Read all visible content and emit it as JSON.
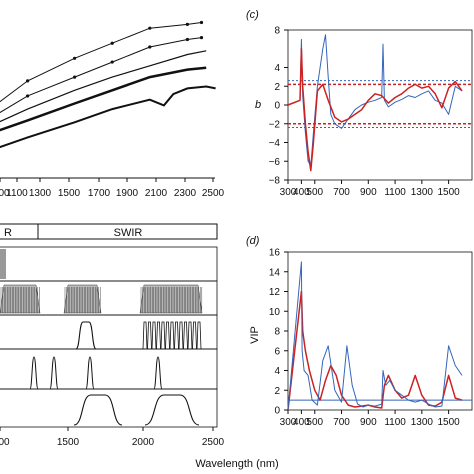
{
  "chart_data": [
    {
      "type": "line",
      "panel": "top-left",
      "series": [
        {
          "x": [
            0,
            400,
            900,
            1300,
            1700,
            2100,
            2250
          ],
          "y": [
            0.55,
            0.7,
            0.82,
            0.9,
            0.98,
            1.0,
            1.01
          ]
        },
        {
          "x": [
            0,
            400,
            900,
            1300,
            1700,
            2100,
            2250
          ],
          "y": [
            0.5,
            0.62,
            0.72,
            0.8,
            0.88,
            0.92,
            0.93
          ]
        },
        {
          "x": [
            0,
            400,
            900,
            1300,
            1700,
            2100,
            2300
          ],
          "y": [
            0.46,
            0.55,
            0.65,
            0.72,
            0.78,
            0.84,
            0.86
          ]
        },
        {
          "x": [
            0,
            400,
            900,
            1300,
            1700,
            2100,
            2300
          ],
          "y": [
            0.42,
            0.49,
            0.58,
            0.65,
            0.72,
            0.76,
            0.77
          ]
        },
        {
          "x": [
            0,
            400,
            900,
            1300,
            1700,
            1850,
            1950,
            2100,
            2300,
            2400
          ],
          "y": [
            0.33,
            0.4,
            0.48,
            0.55,
            0.6,
            0.57,
            0.63,
            0.66,
            0.67,
            0.66
          ]
        }
      ],
      "xticks": [
        "00",
        "1000",
        "1100",
        "1300",
        "1500",
        "1700",
        "1900",
        "2100",
        "2300",
        "2500"
      ]
    },
    {
      "type": "line",
      "panel": "c",
      "panel_label": "(c)",
      "ylabel": "b",
      "xlim": [
        300,
        1600
      ],
      "ylim": [
        -8,
        8
      ],
      "xticks": [
        "300",
        "400",
        "500",
        "700",
        "900",
        "1100",
        "1300",
        "1500"
      ],
      "yticks": [
        "8",
        "4",
        "2",
        "0",
        "−2",
        "−4",
        "−6",
        "−8"
      ],
      "thresholds": [
        {
          "y": 2.2,
          "color": "#cc2222"
        },
        {
          "y": -2.0,
          "color": "#cc2222"
        },
        {
          "y": 2.6,
          "color": "#3366bb"
        },
        {
          "y": -2.4,
          "color": "#3366bb"
        }
      ],
      "series": [
        {
          "color": "#cc2222",
          "x": [
            300,
            390,
            400,
            410,
            430,
            450,
            470,
            490,
            520,
            560,
            600,
            650,
            700,
            750,
            800,
            850,
            900,
            950,
            1000,
            1050,
            1100,
            1150,
            1200,
            1250,
            1300,
            1350,
            1400,
            1450,
            1500,
            1550,
            1600
          ],
          "y": [
            0,
            0.5,
            6,
            2,
            -2,
            -5,
            -7,
            -4,
            1.5,
            2.2,
            0.5,
            -1.3,
            -1.8,
            -1.5,
            -1,
            -0.5,
            0.5,
            1.2,
            1.0,
            0.2,
            0.8,
            1.2,
            1.8,
            2.2,
            1.8,
            2.0,
            1.2,
            -0.3,
            1.8,
            2.5,
            1.5
          ]
        },
        {
          "color": "#3366bb",
          "x": [
            300,
            390,
            400,
            410,
            430,
            450,
            470,
            490,
            520,
            560,
            580,
            600,
            620,
            650,
            700,
            750,
            800,
            850,
            900,
            950,
            1000,
            1010,
            1020,
            1050,
            1100,
            1150,
            1200,
            1250,
            1300,
            1350,
            1400,
            1450,
            1500,
            1550,
            1600
          ],
          "y": [
            0,
            0.5,
            7,
            1,
            -3,
            -6,
            -6.5,
            -3,
            2,
            6,
            7.5,
            3,
            -1,
            -2,
            -2.5,
            -1.5,
            -0.5,
            0,
            0.3,
            0.5,
            0.8,
            6.5,
            0.5,
            -0.2,
            0.3,
            0.6,
            1,
            0.8,
            1.2,
            1.5,
            0.5,
            0.2,
            -1,
            2,
            1.5
          ]
        }
      ]
    },
    {
      "type": "line",
      "panel": "d",
      "panel_label": "(d)",
      "ylabel": "VIP",
      "xlabel": "Wavelength (nm)",
      "xlim": [
        300,
        1600
      ],
      "ylim": [
        0,
        16
      ],
      "xticks": [
        "300",
        "400",
        "500",
        "700",
        "900",
        "1100",
        "1300",
        "1500"
      ],
      "yticks": [
        "0",
        "2",
        "4",
        "6",
        "8",
        "10",
        "12",
        "14",
        "16"
      ],
      "threshold": {
        "y": 1.0,
        "color": "#3366bb"
      },
      "series": [
        {
          "color": "#cc2222",
          "x": [
            300,
            400,
            410,
            430,
            460,
            500,
            540,
            580,
            620,
            660,
            700,
            750,
            800,
            850,
            900,
            950,
            1000,
            1020,
            1050,
            1100,
            1150,
            1200,
            1250,
            1300,
            1350,
            1400,
            1450,
            1500,
            1550,
            1600
          ],
          "y": [
            0,
            12,
            8,
            6,
            4,
            2,
            1,
            3,
            4.5,
            3.5,
            1.5,
            0.5,
            0.3,
            0.4,
            0.5,
            0.3,
            0.2,
            2.5,
            3.5,
            2,
            1.2,
            1.5,
            3.5,
            1.5,
            0.5,
            0.4,
            0.8,
            3.5,
            1.2,
            1.0
          ]
        },
        {
          "color": "#3366bb",
          "x": [
            300,
            400,
            405,
            420,
            450,
            480,
            520,
            560,
            600,
            650,
            700,
            740,
            780,
            820,
            860,
            900,
            950,
            1000,
            1010,
            1030,
            1060,
            1100,
            1150,
            1200,
            1250,
            1300,
            1350,
            1400,
            1450,
            1500,
            1550,
            1600
          ],
          "y": [
            0,
            15,
            6,
            4,
            3.5,
            1,
            0.5,
            5,
            6.5,
            2,
            0.8,
            6.5,
            2.5,
            0.6,
            0.3,
            0.5,
            0.4,
            0.6,
            4,
            2.5,
            3,
            2,
            1.5,
            1,
            0.8,
            1,
            0.6,
            0.3,
            0.4,
            6.5,
            4.5,
            3.5
          ]
        }
      ]
    }
  ],
  "bottom_left": {
    "band_labels": [
      "R",
      "SWIR"
    ],
    "xticks": [
      "00",
      "1500",
      "2000",
      "2500"
    ],
    "xlabel": "Wavelength (nm)"
  },
  "top_left_xticks_raw": [
    "00",
    "1100",
    "1300",
    "1500",
    "1700",
    "1900",
    "2100",
    "2300",
    "2500"
  ],
  "panel_c_label": "(c)",
  "panel_d_label": "(d)",
  "panel_c_ylabel": "b",
  "panel_d_ylabel": "VIP"
}
